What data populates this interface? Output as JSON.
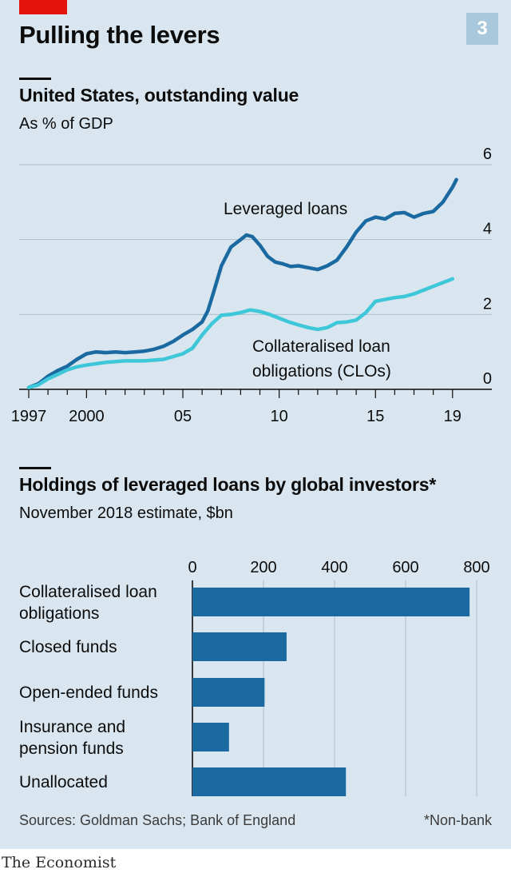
{
  "page": {
    "title": "Pulling the levers",
    "chart_number": "3",
    "sources": "Sources: Goldman Sachs; Bank of England",
    "note": "*Non-bank",
    "brand": "The Economist"
  },
  "colors": {
    "background": "#d9e6ef",
    "accent_red": "#e3120b",
    "leveraged_loans": "#1a6aa1",
    "clos": "#3ec7d9",
    "bars": "#1a6aa1"
  },
  "chart_data": [
    {
      "type": "line",
      "title": "United States, outstanding value",
      "subtitle": "As % of GDP",
      "xlabel": "",
      "ylabel": "",
      "xlim": [
        1997,
        2019.3
      ],
      "ylim": [
        0,
        6
      ],
      "y_ticks": [
        0,
        2,
        4,
        6
      ],
      "x_ticks": [
        {
          "value": 1997,
          "label": "1997"
        },
        {
          "value": 2000,
          "label": "2000"
        },
        {
          "value": 2005,
          "label": "05"
        },
        {
          "value": 2010,
          "label": "10"
        },
        {
          "value": 2015,
          "label": "15"
        },
        {
          "value": 2019,
          "label": "19"
        }
      ],
      "grid": true,
      "series": [
        {
          "name": "Leveraged loans",
          "x": [
            1997,
            1997.5,
            1998,
            1998.5,
            1999,
            1999.5,
            2000,
            2000.5,
            2001,
            2001.5,
            2002,
            2002.5,
            2003,
            2003.5,
            2004,
            2004.5,
            2005,
            2005.5,
            2006,
            2006.3,
            2006.6,
            2007,
            2007.5,
            2008,
            2008.3,
            2008.6,
            2009,
            2009.4,
            2009.8,
            2010.2,
            2010.6,
            2011,
            2011.5,
            2012,
            2012.5,
            2013,
            2013.5,
            2014,
            2014.5,
            2015,
            2015.5,
            2016,
            2016.5,
            2017,
            2017.5,
            2018,
            2018.5,
            2019,
            2019.2
          ],
          "values": [
            0.05,
            0.15,
            0.35,
            0.5,
            0.62,
            0.8,
            0.95,
            1.0,
            0.98,
            1.0,
            0.98,
            1.0,
            1.02,
            1.07,
            1.15,
            1.28,
            1.45,
            1.6,
            1.8,
            2.1,
            2.6,
            3.3,
            3.8,
            4.0,
            4.12,
            4.08,
            3.85,
            3.55,
            3.4,
            3.35,
            3.28,
            3.3,
            3.25,
            3.2,
            3.3,
            3.45,
            3.8,
            4.2,
            4.5,
            4.6,
            4.55,
            4.7,
            4.72,
            4.6,
            4.7,
            4.75,
            5.0,
            5.4,
            5.6
          ]
        },
        {
          "name": "Collateralised loan obligations (CLOs)",
          "x": [
            1997,
            1997.5,
            1998,
            1998.5,
            1999,
            1999.5,
            2000,
            2001,
            2002,
            2003,
            2004,
            2005,
            2005.5,
            2006,
            2006.5,
            2007,
            2007.5,
            2008,
            2008.5,
            2009,
            2009.5,
            2010,
            2010.5,
            2011,
            2011.5,
            2012,
            2012.5,
            2013,
            2013.5,
            2014,
            2014.5,
            2015,
            2015.5,
            2016,
            2016.5,
            2017,
            2017.5,
            2018,
            2018.5,
            2019
          ],
          "values": [
            0.05,
            0.12,
            0.28,
            0.4,
            0.52,
            0.6,
            0.65,
            0.72,
            0.76,
            0.76,
            0.8,
            0.95,
            1.1,
            1.45,
            1.75,
            1.98,
            2.0,
            2.05,
            2.12,
            2.08,
            2.0,
            1.9,
            1.8,
            1.72,
            1.65,
            1.6,
            1.65,
            1.78,
            1.8,
            1.85,
            2.05,
            2.35,
            2.4,
            2.45,
            2.48,
            2.55,
            2.65,
            2.75,
            2.85,
            2.95
          ]
        }
      ]
    },
    {
      "type": "bar",
      "orientation": "horizontal",
      "title": "Holdings of leveraged loans by global investors*",
      "subtitle": "November 2018 estimate, $bn",
      "categories": [
        "Collateralised loan|obligations",
        "Closed funds",
        "Open-ended funds",
        "Insurance and|pension funds",
        "Unallocated"
      ],
      "values": [
        780,
        265,
        203,
        103,
        432
      ],
      "xlim": [
        0,
        800
      ],
      "x_ticks": [
        0,
        200,
        400,
        600,
        800
      ],
      "grid": true
    }
  ]
}
